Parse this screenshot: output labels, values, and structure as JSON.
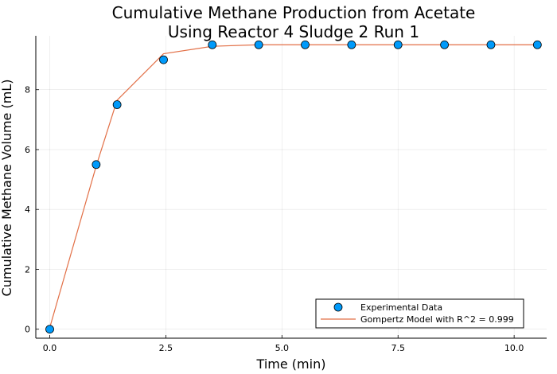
{
  "chart_data": {
    "type": "scatter",
    "title_lines": [
      "Cumulative Methane Production from Acetate",
      "Using Reactor 4 Sludge 2 Run 1"
    ],
    "xlabel": "Time (min)",
    "ylabel": "Cumulative Methane Volume (mL)",
    "xlim": [
      -0.3,
      10.7
    ],
    "ylim": [
      -0.3,
      9.8
    ],
    "xticks": [
      0.0,
      2.5,
      5.0,
      7.5,
      10.0
    ],
    "xtick_labels": [
      "0.0",
      "2.5",
      "5.0",
      "7.5",
      "10.0"
    ],
    "yticks": [
      0,
      2,
      4,
      6,
      8
    ],
    "ytick_labels": [
      "0",
      "2",
      "4",
      "6",
      "8"
    ],
    "grid": true,
    "legend_position": "bottom-right",
    "series": [
      {
        "name": "Experimental Data",
        "kind": "scatter",
        "color": "#009AFA",
        "x": [
          0,
          1.0,
          1.45,
          2.45,
          3.5,
          4.5,
          5.5,
          6.5,
          7.5,
          8.5,
          9.5,
          10.5
        ],
        "y": [
          0,
          5.5,
          7.5,
          9.0,
          9.5,
          9.5,
          9.5,
          9.5,
          9.5,
          9.5,
          9.5,
          9.5
        ]
      },
      {
        "name": "Gompertz Model with R^2 = 0.999",
        "kind": "line",
        "color": "#E26F46",
        "x": [
          0,
          1.0,
          1.45,
          2.45,
          3.5,
          4.5,
          5.5,
          6.5,
          7.5,
          8.5,
          9.5,
          10.5
        ],
        "y": [
          0.05,
          5.45,
          7.65,
          9.2,
          9.45,
          9.5,
          9.5,
          9.5,
          9.5,
          9.5,
          9.5,
          9.5
        ]
      }
    ]
  }
}
